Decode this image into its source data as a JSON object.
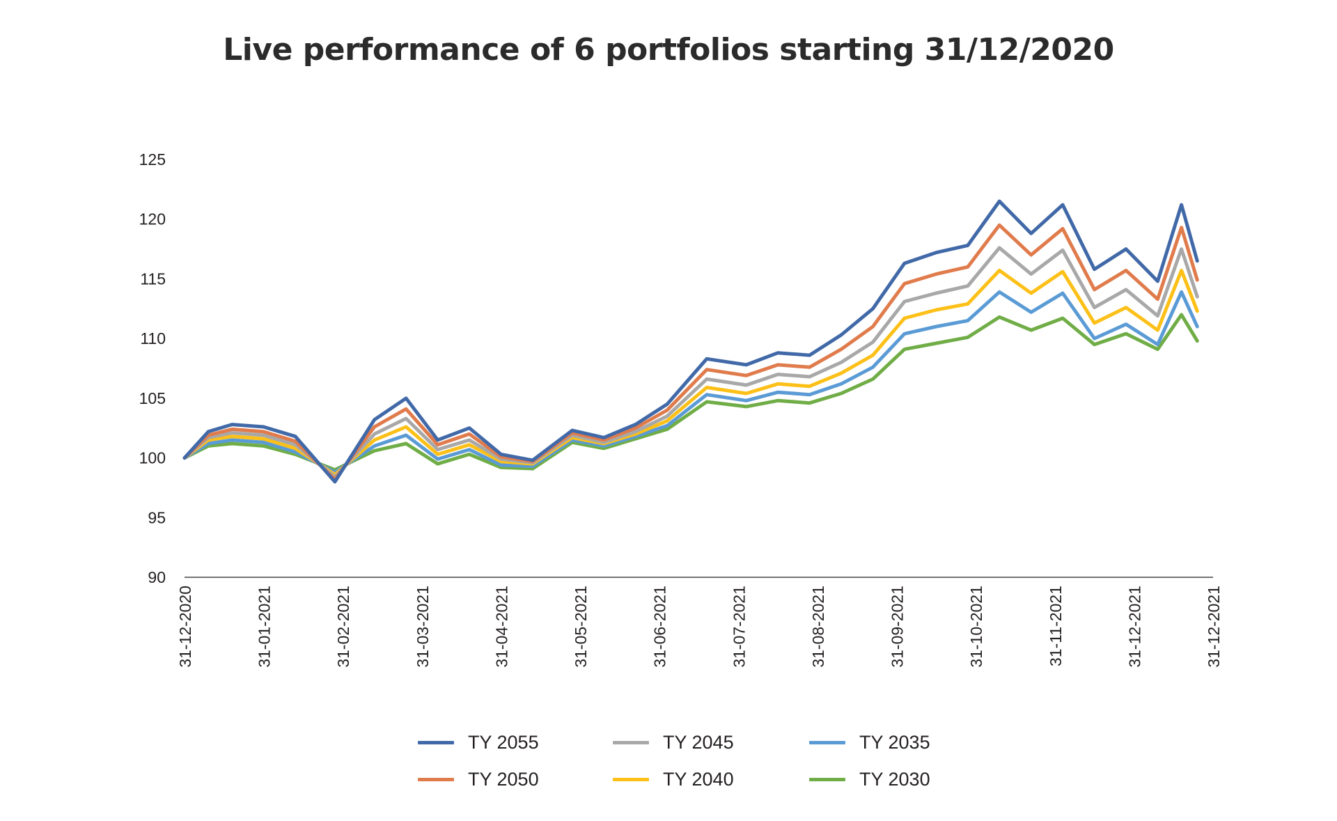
{
  "chart_data": {
    "type": "line",
    "title": "Live performance of 6 portfolios starting 31/12/2020",
    "xlabel": "",
    "ylabel": "",
    "ylim": [
      90,
      125
    ],
    "yticks": [
      90,
      95,
      100,
      105,
      110,
      115,
      120,
      125
    ],
    "xticks": [
      "31-12-2020",
      "31-01-2021",
      "31-02-2021",
      "31-03-2021",
      "31-04-2021",
      "31-05-2021",
      "31-06-2021",
      "31-07-2021",
      "31-08-2021",
      "31-09-2021",
      "31-10-2021",
      "31-11-2021",
      "31-12-2021",
      "31-12-2021"
    ],
    "grid": false,
    "legend_position": "bottom",
    "x": [
      0,
      0.3,
      0.6,
      1.0,
      1.4,
      1.9,
      2.4,
      2.8,
      3.2,
      3.6,
      4.0,
      4.4,
      4.9,
      5.3,
      5.7,
      6.1,
      6.6,
      7.1,
      7.5,
      7.9,
      8.3,
      8.7,
      9.1,
      9.5,
      9.9,
      10.3,
      10.7,
      11.1,
      11.5,
      11.9,
      12.3,
      12.6,
      12.8
    ],
    "series": [
      {
        "name": "TY 2055",
        "color": "#4169a8",
        "values": [
          100.0,
          102.2,
          102.8,
          102.6,
          101.8,
          98.0,
          103.2,
          105.0,
          101.5,
          102.5,
          100.3,
          99.8,
          102.3,
          101.7,
          102.8,
          104.5,
          108.3,
          107.8,
          108.8,
          108.6,
          110.3,
          112.5,
          116.3,
          117.2,
          117.8,
          121.5,
          118.8,
          121.2,
          115.8,
          117.5,
          114.8,
          121.2,
          116.5
        ]
      },
      {
        "name": "TY 2050",
        "color": "#e07b4c",
        "values": [
          100.0,
          101.9,
          102.4,
          102.2,
          101.4,
          98.2,
          102.6,
          104.1,
          101.1,
          102.0,
          100.1,
          99.7,
          102.1,
          101.5,
          102.5,
          104.0,
          107.4,
          106.9,
          107.8,
          107.6,
          109.1,
          111.0,
          114.6,
          115.4,
          116.0,
          119.5,
          117.0,
          119.2,
          114.1,
          115.7,
          113.3,
          119.3,
          114.9
        ]
      },
      {
        "name": "TY 2045",
        "color": "#a8a8a8",
        "values": [
          100.0,
          101.7,
          102.1,
          101.9,
          101.1,
          98.4,
          102.0,
          103.3,
          100.7,
          101.5,
          99.9,
          99.6,
          101.9,
          101.3,
          102.2,
          103.5,
          106.6,
          106.1,
          107.0,
          106.8,
          108.0,
          109.7,
          113.1,
          113.8,
          114.4,
          117.6,
          115.4,
          117.4,
          112.6,
          114.1,
          111.9,
          117.5,
          113.5
        ]
      },
      {
        "name": "TY 2040",
        "color": "#fcc018",
        "values": [
          100.0,
          101.5,
          101.8,
          101.6,
          100.8,
          98.6,
          101.5,
          102.6,
          100.3,
          101.1,
          99.7,
          99.5,
          101.7,
          101.2,
          102.0,
          103.1,
          105.9,
          105.4,
          106.2,
          106.0,
          107.1,
          108.6,
          111.7,
          112.4,
          112.9,
          115.7,
          113.8,
          115.6,
          111.3,
          112.6,
          110.7,
          115.7,
          112.3
        ]
      },
      {
        "name": "TY 2035",
        "color": "#5b9bd5",
        "values": [
          100.0,
          101.2,
          101.5,
          101.3,
          100.5,
          98.8,
          101.0,
          101.9,
          99.9,
          100.7,
          99.4,
          99.3,
          101.5,
          101.0,
          101.8,
          102.7,
          105.3,
          104.8,
          105.5,
          105.3,
          106.2,
          107.6,
          110.4,
          111.0,
          111.5,
          113.9,
          112.2,
          113.8,
          110.0,
          111.2,
          109.5,
          113.9,
          111.0
        ]
      },
      {
        "name": "TY 2030",
        "color": "#70ad47",
        "values": [
          100.0,
          101.0,
          101.2,
          101.0,
          100.3,
          99.0,
          100.6,
          101.2,
          99.5,
          100.3,
          99.2,
          99.1,
          101.3,
          100.8,
          101.6,
          102.4,
          104.7,
          104.3,
          104.8,
          104.6,
          105.4,
          106.6,
          109.1,
          109.6,
          110.1,
          111.8,
          110.7,
          111.7,
          109.5,
          110.4,
          109.1,
          112.0,
          109.8
        ]
      }
    ]
  }
}
